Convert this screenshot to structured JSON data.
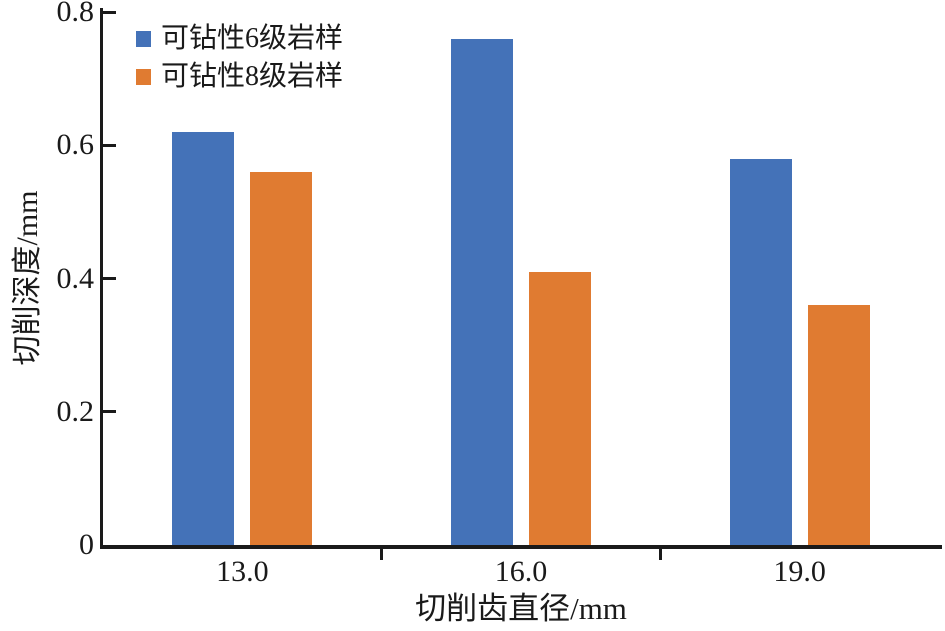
{
  "chart_data": {
    "type": "bar",
    "title": "",
    "categories": [
      "13.0",
      "16.0",
      "19.0"
    ],
    "series": [
      {
        "name": "可钻性6级岩样",
        "color": "#4472b8",
        "values": [
          0.62,
          0.76,
          0.58
        ]
      },
      {
        "name": "可钻性8级岩样",
        "color": "#e07b31",
        "values": [
          0.56,
          0.41,
          0.36
        ]
      }
    ],
    "xlabel": "切削齿直径/mm",
    "ylabel": "切削深度/mm",
    "ylim": [
      0,
      0.8
    ],
    "yticks": [
      0,
      0.2,
      0.4,
      0.6,
      0.8
    ],
    "ytick_labels": [
      "0",
      "0.2",
      "0.4",
      "0.6",
      "0.8"
    ],
    "legend_position": "top-left-inside",
    "grid": false,
    "axis_color": "#1a1a1a"
  }
}
